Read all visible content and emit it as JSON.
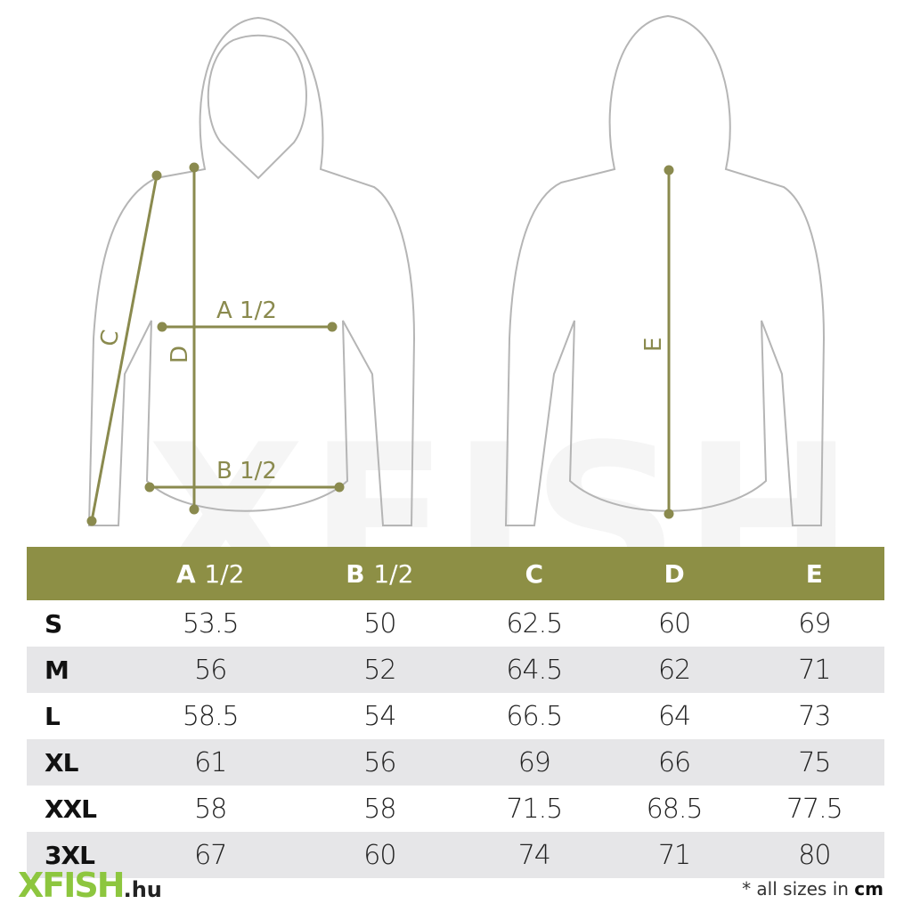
{
  "diagram": {
    "labels": {
      "a": "A 1/2",
      "b": "B 1/2",
      "c": "C",
      "d": "D",
      "e": "E"
    },
    "line_color": "#8a8a4e",
    "outline_color": "#b5b5b5"
  },
  "watermark": "XFISH",
  "table": {
    "header_color": "#8d8f45",
    "columns": [
      {
        "letter": "A",
        "suffix": "1/2"
      },
      {
        "letter": "B",
        "suffix": "1/2"
      },
      {
        "letter": "C",
        "suffix": ""
      },
      {
        "letter": "D",
        "suffix": ""
      },
      {
        "letter": "E",
        "suffix": ""
      }
    ],
    "rows": [
      {
        "size": "S",
        "values": [
          "53.5",
          "50",
          "62.5",
          "60",
          "69"
        ]
      },
      {
        "size": "M",
        "values": [
          "56",
          "52",
          "64.5",
          "62",
          "71"
        ]
      },
      {
        "size": "L",
        "values": [
          "58.5",
          "54",
          "66.5",
          "64",
          "73"
        ]
      },
      {
        "size": "XL",
        "values": [
          "61",
          "56",
          "69",
          "66",
          "75"
        ]
      },
      {
        "size": "XXL",
        "values": [
          "58",
          "58",
          "71.5",
          "68.5",
          "77.5"
        ]
      },
      {
        "size": "3XL",
        "values": [
          "67",
          "60",
          "74",
          "71",
          "80"
        ]
      }
    ]
  },
  "footer": {
    "logo_main": "XFISH",
    "logo_suffix": ".hu",
    "note_prefix": "* all sizes in",
    "note_unit": "cm"
  }
}
